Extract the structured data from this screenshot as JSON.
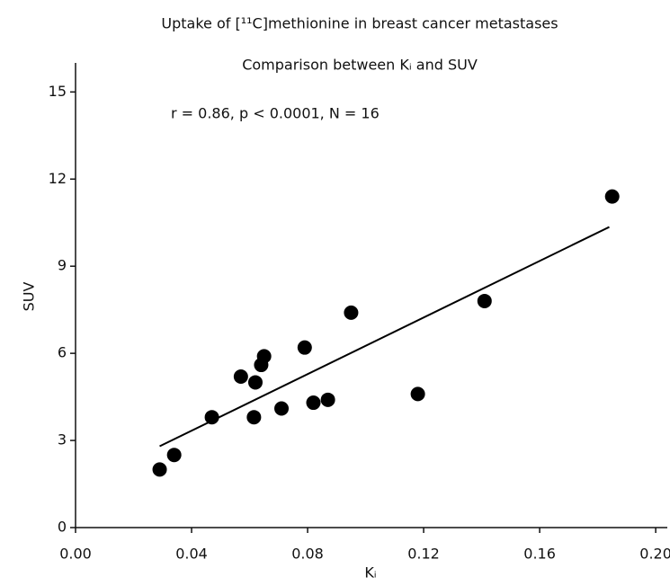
{
  "chart_data": {
    "type": "scatter",
    "title": "Uptake of [¹¹C]methionine in breast cancer metastases",
    "subtitle": "Comparison between Kᵢ and SUV",
    "annotation": "r = 0.86, p < 0.0001, N = 16",
    "x_label": "Kᵢ",
    "y_label": "SUV",
    "x": [
      0.029,
      0.034,
      0.047,
      0.057,
      0.062,
      0.0615,
      0.064,
      0.065,
      0.071,
      0.079,
      0.082,
      0.087,
      0.095,
      0.118,
      0.141,
      0.185
    ],
    "values": [
      2.0,
      2.5,
      3.8,
      5.2,
      5.0,
      3.8,
      5.6,
      5.9,
      4.1,
      6.2,
      4.3,
      4.4,
      7.4,
      4.6,
      7.8,
      11.4
    ],
    "color": "#000000",
    "fit_line": {
      "x": [
        0.029,
        0.184
      ],
      "y": [
        2.8,
        10.35
      ]
    },
    "xlim": [
      0,
      0.204
    ],
    "xticks": [
      {
        "value": 0,
        "label": "0.00"
      },
      0.04,
      0.08,
      0.12,
      0.16,
      {
        "value": 0.2,
        "label": "0.20"
      }
    ],
    "ylim": [
      0,
      16
    ],
    "yticks": [
      0,
      3,
      6,
      9,
      12,
      15
    ],
    "grid": false
  }
}
